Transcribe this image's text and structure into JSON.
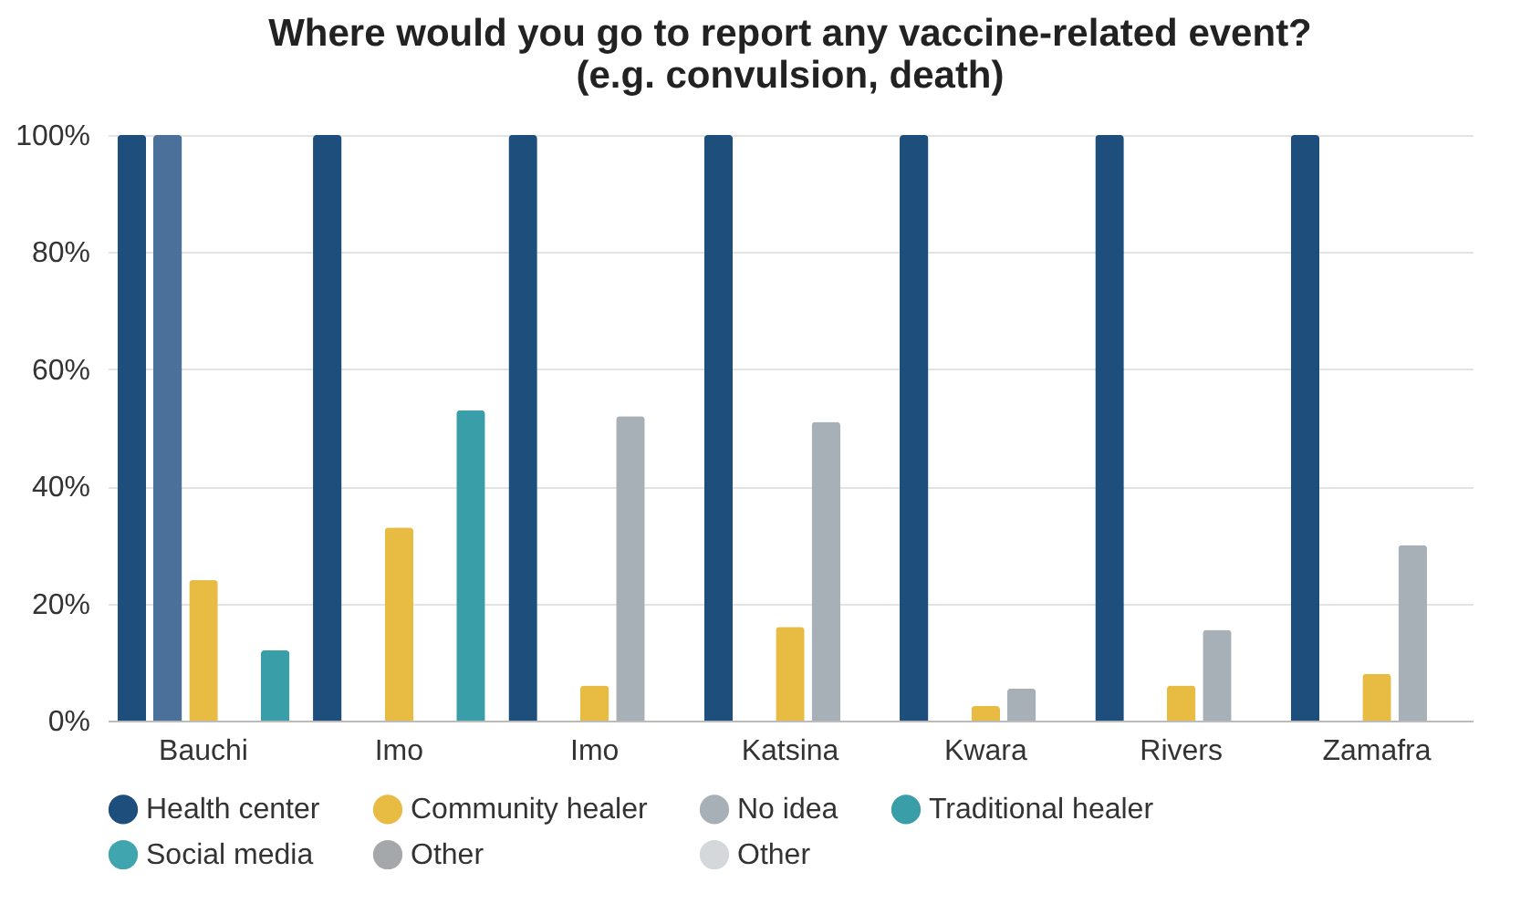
{
  "chart_data": {
    "type": "bar",
    "title": "Where would you go to report any vaccine-related event?\n(e.g. convulsion, death)",
    "categories": [
      "Bauchi",
      "Imo",
      "Imo",
      "Katsina",
      "Kwara",
      "Rivers",
      "Zamafra"
    ],
    "series": [
      {
        "name": "Health center",
        "color": "#1d4e7c",
        "values": [
          100,
          100,
          100,
          100,
          100,
          100,
          100
        ]
      },
      {
        "color": "#4b7099",
        "values": [
          100,
          null,
          null,
          null,
          null,
          null,
          null
        ]
      },
      {
        "name": "Community healer",
        "color": "#e8bb42",
        "values": [
          24,
          33,
          6,
          16,
          2.5,
          6,
          8
        ]
      },
      {
        "name": "No idea",
        "color": "#a8b0b7",
        "values": [
          null,
          null,
          52,
          51,
          5.5,
          15.5,
          30
        ]
      },
      {
        "name": "Traditional healer",
        "color": "#3a9ea8",
        "values": [
          12,
          53,
          null,
          null,
          null,
          null,
          null
        ]
      },
      {
        "name": "Social media",
        "color": "#40a5ae",
        "values": [
          null,
          null,
          null,
          null,
          null,
          null,
          null
        ]
      },
      {
        "name": "Other",
        "color": "#a4a8aa",
        "values": [
          null,
          null,
          null,
          null,
          null,
          null,
          null
        ]
      },
      {
        "name": "Other",
        "color": "#d4d8db",
        "values": [
          null,
          null,
          null,
          null,
          null,
          null,
          null
        ]
      }
    ],
    "ylim": [
      0,
      100
    ],
    "yticks": [
      {
        "value": 0,
        "label": "0%"
      },
      {
        "value": 20,
        "label": "20%"
      },
      {
        "value": 40,
        "label": "40%"
      },
      {
        "value": 60,
        "label": "60%"
      },
      {
        "value": 80,
        "label": "80%"
      },
      {
        "value": 100,
        "label": "100%"
      }
    ],
    "grid": "y",
    "legend": "bottom"
  }
}
